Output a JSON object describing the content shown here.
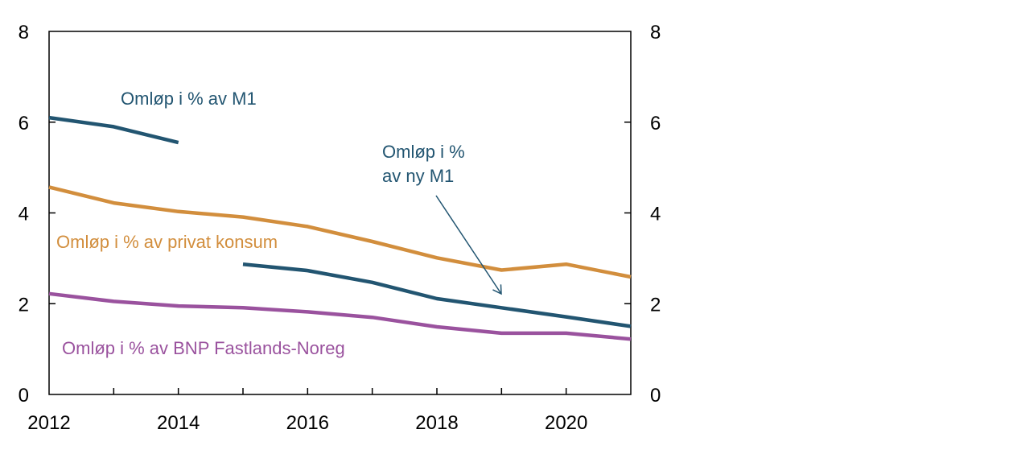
{
  "chart_data": {
    "type": "line",
    "x_ticks": [
      "2012",
      "2014",
      "2016",
      "2018",
      "2020"
    ],
    "y_ticks": [
      "0",
      "2",
      "4",
      "6",
      "8"
    ],
    "xlim": [
      2012,
      2021
    ],
    "ylim": [
      0,
      8
    ],
    "right_axis": true,
    "grid": false,
    "colors": {
      "m1": "#225571",
      "konsum": "#D28E3D",
      "bnp": "#9A529E"
    },
    "series": [
      {
        "key": "m1",
        "name": "Omløp i % av M1",
        "color": "#225571",
        "x": [
          2012,
          2013,
          2014
        ],
        "y": [
          6.1,
          5.9,
          5.55
        ]
      },
      {
        "key": "ny_m1",
        "name": "Omløp i % av ny M1",
        "color": "#225571",
        "x": [
          2015,
          2016,
          2017,
          2018,
          2019,
          2020,
          2021
        ],
        "y": [
          2.87,
          2.73,
          2.47,
          2.11,
          1.91,
          1.71,
          1.5
        ]
      },
      {
        "key": "konsum",
        "name": "Omløp i % av privat konsum",
        "color": "#D28E3D",
        "x": [
          2012,
          2013,
          2014,
          2015,
          2016,
          2017,
          2018,
          2019,
          2020,
          2021
        ],
        "y": [
          4.57,
          4.22,
          4.03,
          3.91,
          3.7,
          3.37,
          3.01,
          2.74,
          2.87,
          2.59
        ]
      },
      {
        "key": "bnp",
        "name": "Omløp i  % av BNP Fastlands-Noreg",
        "color": "#9A529E",
        "x": [
          2012,
          2013,
          2014,
          2015,
          2016,
          2017,
          2018,
          2019,
          2020,
          2021
        ],
        "y": [
          2.22,
          2.05,
          1.95,
          1.91,
          1.82,
          1.7,
          1.49,
          1.35,
          1.35,
          1.22
        ]
      }
    ],
    "annotations": {
      "m1": "Omløp i % av M1",
      "ny_m1_line1": "Omløp i %",
      "ny_m1_line2": "av ny M1",
      "konsum": "Omløp i % av privat konsum",
      "bnp": "Omløp i  % av BNP Fastlands-Noreg"
    }
  }
}
